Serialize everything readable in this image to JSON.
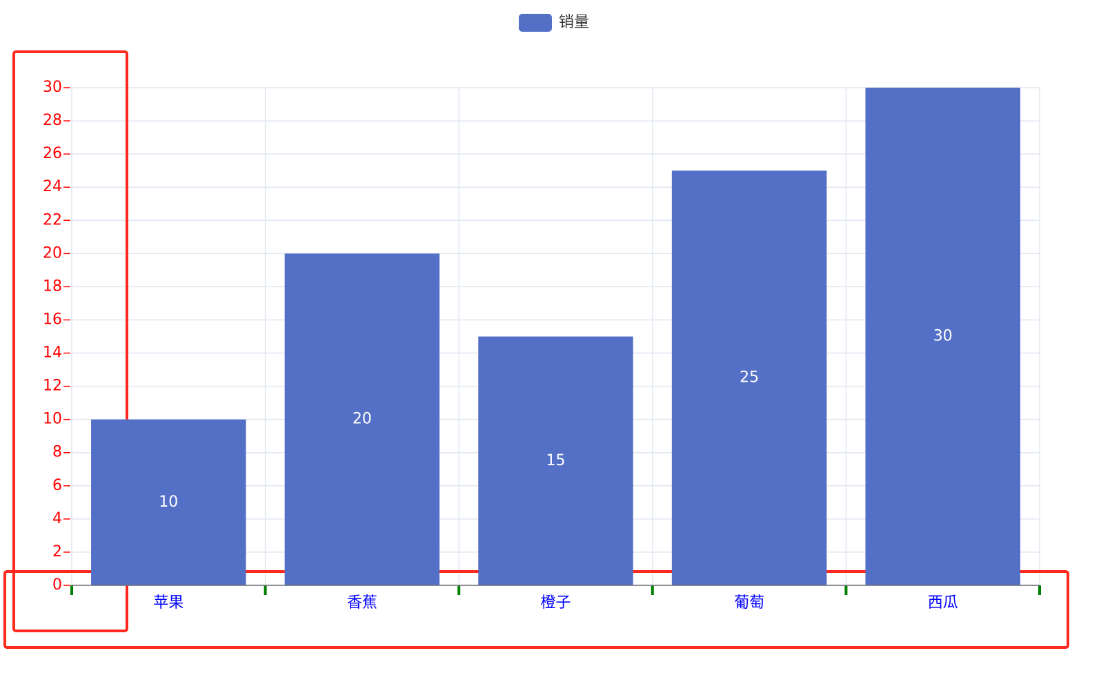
{
  "chart_data": {
    "type": "bar",
    "categories": [
      "苹果",
      "香蕉",
      "橙子",
      "葡萄",
      "西瓜"
    ],
    "series": [
      {
        "name": "销量",
        "color": "#5470c6",
        "values": [
          10,
          20,
          15,
          25,
          30
        ]
      }
    ],
    "ylim": [
      0,
      30
    ],
    "yticks": [
      0,
      2,
      4,
      6,
      8,
      10,
      12,
      14,
      16,
      18,
      20,
      22,
      24,
      26,
      28,
      30
    ],
    "grid": true
  }
}
